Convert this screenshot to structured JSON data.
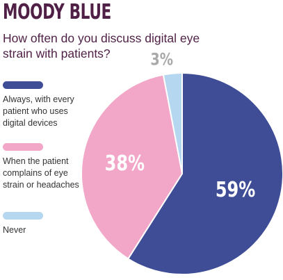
{
  "header": {
    "title": "MOODY BLUE",
    "question": "How often do you discuss digital eye strain with patients?"
  },
  "colors": {
    "title": "#4f1f45",
    "always": "#3f4c96",
    "complaints": "#f2a6c8",
    "never": "#b5d8f0"
  },
  "chart_data": {
    "type": "pie",
    "categories": [
      "Always, with every patient who uses digital devices",
      "When the patient complains of eye strain or headaches",
      "Never"
    ],
    "values": [
      59,
      38,
      3
    ],
    "labels": [
      "59%",
      "38%",
      "3%"
    ],
    "title": "How often do you discuss digital eye strain with patients?",
    "legend": "left"
  }
}
